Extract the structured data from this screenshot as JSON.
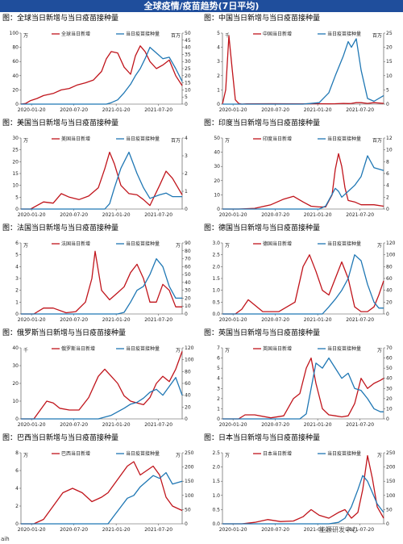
{
  "page": {
    "title": "全球疫情/疫苗趋势(7日平均)",
    "footer_left": "aih",
    "watermark": "能源研发中心"
  },
  "colors": {
    "cases": "#c0141b",
    "vaccine": "#1f77b4",
    "banner": "#1f4e9c"
  },
  "chart_data": [
    {
      "type": "line",
      "title": "图：全球当日新增与当日疫苗接种量",
      "left_unit": "万",
      "right_unit": "百万",
      "x_ticks": [
        "2020-01-20",
        "2020-07-20",
        "2021-01-20",
        "2021-07-20"
      ],
      "ylim_left": [
        0,
        100
      ],
      "left_ticks": [
        "0",
        "20",
        "40",
        "60",
        "80",
        "100"
      ],
      "ylim_right": [
        0,
        50
      ],
      "right_ticks": [
        "0",
        "5",
        "10",
        "15",
        "20",
        "25",
        "30",
        "35",
        "40",
        "45",
        "50"
      ],
      "x": [
        0,
        0.03,
        0.06,
        0.1,
        0.14,
        0.2,
        0.25,
        0.3,
        0.35,
        0.4,
        0.45,
        0.5,
        0.53,
        0.56,
        0.6,
        0.64,
        0.68,
        0.71,
        0.74,
        0.77,
        0.8,
        0.84,
        0.88,
        0.92,
        0.96,
        1
      ],
      "series": [
        {
          "name": "全球当日新增",
          "axis": "left",
          "values": [
            0,
            1,
            5,
            8,
            12,
            15,
            20,
            22,
            27,
            30,
            34,
            46,
            64,
            74,
            72,
            52,
            42,
            68,
            82,
            74,
            60,
            50,
            55,
            62,
            40,
            26
          ]
        },
        {
          "name": "当日疫苗接种量",
          "axis": "right",
          "values": [
            0,
            0,
            0,
            0,
            0,
            0,
            0,
            0,
            0,
            0,
            0,
            0,
            0,
            1,
            3,
            8,
            14,
            20,
            25,
            32,
            40,
            36,
            32,
            33,
            25,
            16
          ]
        }
      ]
    },
    {
      "type": "line",
      "title": "图：中国当日新增与当日疫苗接种量",
      "left_unit": "千",
      "right_unit": "百万",
      "x_ticks": [
        "2020-01-20",
        "2020-07-20",
        "2021-01-20",
        "2021-07-20"
      ],
      "ylim_left": [
        0,
        5
      ],
      "left_ticks": [
        "0",
        "1",
        "2",
        "3",
        "4",
        "5"
      ],
      "ylim_right": [
        0,
        25
      ],
      "right_ticks": [
        "0",
        "5",
        "10",
        "15",
        "20",
        "25"
      ],
      "x": [
        0,
        0.02,
        0.04,
        0.06,
        0.08,
        0.1,
        0.12,
        0.15,
        0.3,
        0.5,
        0.6,
        0.66,
        0.7,
        0.75,
        0.78,
        0.8,
        0.83,
        0.86,
        0.9,
        0.94,
        1
      ],
      "series": [
        {
          "name": "中国当日新增",
          "axis": "left",
          "values": [
            0,
            1,
            4.8,
            2.5,
            0.3,
            0.05,
            0,
            0.02,
            0.03,
            0.02,
            0.03,
            0.02,
            0.03,
            0.05,
            0.04,
            0.05,
            0.1,
            0.1,
            0.05,
            0.1,
            0.05
          ]
        },
        {
          "name": "当日疫苗接种量",
          "axis": "right",
          "values": [
            0,
            0,
            0,
            0,
            0,
            0,
            0,
            0,
            0,
            0,
            0.5,
            4,
            10,
            17,
            22,
            20,
            23,
            12,
            2,
            1,
            3
          ]
        }
      ]
    },
    {
      "type": "line",
      "title": "图：美国当日新增与当日疫苗接种量",
      "left_unit": "万",
      "right_unit": "百万",
      "x_ticks": [
        "2020-01-20",
        "2020-07-20",
        "2021-01-20",
        "2021-07-20"
      ],
      "ylim_left": [
        0,
        30
      ],
      "left_ticks": [
        "0",
        "5",
        "10",
        "15",
        "20",
        "25",
        "30"
      ],
      "ylim_right": [
        0,
        4
      ],
      "right_ticks": [
        "0",
        "1",
        "2",
        "3",
        "4"
      ],
      "x": [
        0,
        0.06,
        0.1,
        0.14,
        0.2,
        0.25,
        0.3,
        0.36,
        0.42,
        0.48,
        0.52,
        0.55,
        0.58,
        0.62,
        0.67,
        0.72,
        0.76,
        0.8,
        0.86,
        0.9,
        0.94,
        1
      ],
      "series": [
        {
          "name": "美国当日新增",
          "axis": "left",
          "values": [
            0,
            0,
            1.5,
            3,
            2.5,
            6.5,
            5,
            4,
            5.5,
            9,
            17,
            24,
            19,
            10,
            6.5,
            6,
            4,
            1.5,
            10,
            16,
            13,
            6
          ]
        },
        {
          "name": "当日疫苗接种量",
          "axis": "right",
          "values": [
            0,
            0,
            0,
            0,
            0,
            0,
            0,
            0,
            0,
            0,
            0,
            0.3,
            1.2,
            2.3,
            3.2,
            2,
            1.2,
            0.6,
            0.8,
            0.9,
            0.7,
            0.7
          ]
        }
      ]
    },
    {
      "type": "line",
      "title": "图：印度当日新增与当日疫苗接种量",
      "left_unit": "万",
      "right_unit": "百万",
      "x_ticks": [
        "2020-01-20",
        "2020-07-20",
        "2021-01-20",
        "2021-07-20"
      ],
      "ylim_left": [
        0,
        50
      ],
      "left_ticks": [
        "0",
        "10",
        "20",
        "30",
        "40",
        "50"
      ],
      "ylim_right": [
        0,
        12
      ],
      "right_ticks": [
        "0",
        "2",
        "4",
        "6",
        "8",
        "10",
        "12"
      ],
      "x": [
        0,
        0.1,
        0.2,
        0.3,
        0.38,
        0.44,
        0.5,
        0.55,
        0.6,
        0.64,
        0.68,
        0.7,
        0.72,
        0.74,
        0.76,
        0.78,
        0.82,
        0.86,
        0.9,
        0.94,
        1
      ],
      "series": [
        {
          "name": "印度当日新增",
          "axis": "left",
          "values": [
            0,
            0,
            0.5,
            3,
            7,
            9,
            5,
            2,
            1.5,
            1.5,
            10,
            28,
            39,
            30,
            15,
            6,
            5,
            3,
            3,
            3,
            2
          ]
        },
        {
          "name": "当日疫苗接种量",
          "axis": "right",
          "values": [
            0,
            0,
            0,
            0,
            0,
            0,
            0,
            0,
            0,
            0.5,
            2.5,
            3.5,
            3,
            2,
            2.5,
            3,
            4,
            5.5,
            9,
            7,
            6.5
          ]
        }
      ]
    },
    {
      "type": "line",
      "title": "图：法国当日新增与当日疫苗接种量",
      "left_unit": "万",
      "right_unit": "万",
      "x_ticks": [
        "2020-01-20",
        "2020-07-20",
        "2021-01-20",
        "2021-07-20"
      ],
      "ylim_left": [
        0,
        6
      ],
      "left_ticks": [
        "0",
        "1",
        "2",
        "3",
        "4",
        "5",
        "6"
      ],
      "ylim_right": [
        0,
        90
      ],
      "right_ticks": [
        "0",
        "10",
        "20",
        "30",
        "40",
        "50",
        "60",
        "70",
        "80",
        "90"
      ],
      "x": [
        0,
        0.08,
        0.14,
        0.2,
        0.28,
        0.34,
        0.4,
        0.44,
        0.46,
        0.5,
        0.55,
        0.6,
        0.64,
        0.68,
        0.72,
        0.76,
        0.8,
        0.84,
        0.88,
        0.92,
        0.96,
        1
      ],
      "series": [
        {
          "name": "法国当日新增",
          "axis": "left",
          "values": [
            0,
            0,
            0.5,
            0.5,
            0.1,
            0.2,
            1,
            3,
            5.3,
            2,
            1.2,
            1.8,
            2.3,
            3.5,
            4.2,
            3,
            1,
            1,
            2.5,
            2,
            0.6,
            0.6
          ]
        },
        {
          "name": "当日疫苗接种量",
          "axis": "right",
          "values": [
            0,
            0,
            0,
            0,
            0,
            0,
            0,
            0,
            0,
            0,
            0,
            0,
            2,
            15,
            30,
            35,
            50,
            70,
            60,
            35,
            20,
            20
          ]
        }
      ]
    },
    {
      "type": "line",
      "title": "图：德国当日新增与当日疫苗接种量",
      "left_unit": "万",
      "right_unit": "万",
      "x_ticks": [
        "2020-01-20",
        "2020-07-20",
        "2021-01-20",
        "2021-07-20"
      ],
      "ylim_left": [
        0,
        3
      ],
      "left_ticks": [
        "0.0",
        "0.5",
        "1.0",
        "1.5",
        "2.0",
        "2.5",
        "3.0"
      ],
      "ylim_right": [
        0,
        120
      ],
      "right_ticks": [
        "0",
        "20",
        "40",
        "60",
        "80",
        "100",
        "120"
      ],
      "x": [
        0,
        0.08,
        0.12,
        0.16,
        0.25,
        0.35,
        0.45,
        0.5,
        0.54,
        0.58,
        0.62,
        0.66,
        0.7,
        0.74,
        0.78,
        0.82,
        0.86,
        0.9,
        0.94,
        0.97,
        1
      ],
      "series": [
        {
          "name": "德国当日新增",
          "axis": "left",
          "values": [
            0,
            0,
            0.2,
            0.6,
            0.1,
            0.1,
            0.5,
            2,
            2.5,
            1.8,
            1,
            0.8,
            1.5,
            2.2,
            1.5,
            0.3,
            0.1,
            0.1,
            0.3,
            0.8,
            1.4
          ]
        },
        {
          "name": "当日疫苗接种量",
          "axis": "right",
          "values": [
            0,
            0,
            0,
            0,
            0,
            0,
            0,
            0,
            0,
            0,
            0,
            12,
            25,
            40,
            60,
            100,
            90,
            50,
            20,
            10,
            10
          ]
        }
      ]
    },
    {
      "type": "line",
      "title": "图：俄罗斯当日新增与当日疫苗接种量",
      "left_unit": "千",
      "right_unit": "万",
      "x_ticks": [
        "2020-01-20",
        "2020-07-20",
        "2021-01-20",
        "2021-07-20"
      ],
      "ylim_left": [
        0,
        40
      ],
      "left_ticks": [
        "0",
        "10",
        "20",
        "30",
        "40"
      ],
      "ylim_right": [
        0,
        120
      ],
      "right_ticks": [
        "0",
        "20",
        "40",
        "60",
        "80",
        "100",
        "120"
      ],
      "x": [
        0,
        0.08,
        0.12,
        0.16,
        0.2,
        0.24,
        0.3,
        0.36,
        0.42,
        0.48,
        0.52,
        0.56,
        0.6,
        0.64,
        0.68,
        0.72,
        0.76,
        0.8,
        0.84,
        0.88,
        0.92,
        0.96,
        1
      ],
      "series": [
        {
          "name": "俄罗斯当日新增",
          "axis": "left",
          "values": [
            0,
            0,
            5,
            10,
            9,
            6,
            5,
            5,
            12,
            24,
            28,
            24,
            20,
            13,
            10,
            9,
            8,
            12,
            20,
            24,
            21,
            28,
            38
          ]
        },
        {
          "name": "当日疫苗接种量",
          "axis": "right",
          "values": [
            0,
            0,
            0,
            0,
            0,
            0,
            0,
            0,
            0,
            0,
            3,
            6,
            12,
            18,
            25,
            28,
            35,
            45,
            50,
            40,
            55,
            70,
            40
          ]
        }
      ]
    },
    {
      "type": "line",
      "title": "图：英国当日新增与当日疫苗接种量",
      "left_unit": "万",
      "right_unit": "万",
      "x_ticks": [
        "2020-01-20",
        "2020-07-20",
        "2021-01-20",
        "2021-07-20"
      ],
      "ylim_left": [
        0,
        7
      ],
      "left_ticks": [
        "0",
        "1",
        "2",
        "3",
        "4",
        "5",
        "6",
        "7"
      ],
      "ylim_right": [
        0,
        70
      ],
      "right_ticks": [
        "0",
        "10",
        "20",
        "30",
        "40",
        "50",
        "60",
        "70"
      ],
      "x": [
        0,
        0.1,
        0.14,
        0.2,
        0.3,
        0.38,
        0.44,
        0.48,
        0.52,
        0.55,
        0.58,
        0.62,
        0.66,
        0.7,
        0.74,
        0.78,
        0.82,
        0.86,
        0.9,
        0.94,
        0.98,
        1
      ],
      "series": [
        {
          "name": "英国当日新增",
          "axis": "left",
          "values": [
            0,
            0,
            0.4,
            0.4,
            0.1,
            0.3,
            2,
            2.5,
            5,
            6,
            3.5,
            1,
            0.4,
            0.3,
            0.2,
            0.3,
            1.5,
            4,
            3,
            3.5,
            3.8,
            4
          ]
        },
        {
          "name": "当日疫苗接种量",
          "axis": "right",
          "values": [
            0,
            0,
            0,
            0,
            0,
            0,
            0,
            0,
            5,
            30,
            55,
            50,
            60,
            50,
            40,
            45,
            30,
            28,
            20,
            10,
            7,
            7
          ]
        }
      ]
    },
    {
      "type": "line",
      "title": "图：巴西当日新增与当日疫苗接种量",
      "left_unit": "万",
      "right_unit": "万",
      "x_ticks": [
        "2020-01-20",
        "2020-07-20",
        "2021-01-20",
        "2021-07-20"
      ],
      "ylim_left": [
        0,
        8
      ],
      "left_ticks": [
        "0",
        "2",
        "4",
        "6",
        "8"
      ],
      "ylim_right": [
        0,
        250
      ],
      "right_ticks": [
        "0",
        "50",
        "100",
        "150",
        "200",
        "250"
      ],
      "x": [
        0,
        0.08,
        0.14,
        0.2,
        0.26,
        0.32,
        0.38,
        0.44,
        0.5,
        0.54,
        0.58,
        0.62,
        0.66,
        0.7,
        0.74,
        0.78,
        0.82,
        0.86,
        0.9,
        0.94,
        1
      ],
      "series": [
        {
          "name": "巴西当日新增",
          "axis": "left",
          "values": [
            0,
            0,
            0.5,
            2,
            3.5,
            4,
            3.5,
            2.5,
            3,
            3.5,
            4.5,
            5.5,
            6.5,
            7,
            5.5,
            6,
            6.5,
            5.5,
            3,
            2,
            1.5
          ]
        },
        {
          "name": "当日疫苗接种量",
          "axis": "right",
          "values": [
            0,
            0,
            0,
            0,
            0,
            0,
            0,
            0,
            0,
            0,
            30,
            60,
            90,
            100,
            130,
            150,
            170,
            160,
            180,
            140,
            150
          ]
        }
      ]
    },
    {
      "type": "line",
      "title": "图：日本当日新增与当日疫苗接种量",
      "left_unit": "万",
      "right_unit": "万",
      "x_ticks": [
        "2020-01-20",
        "2020-07-20",
        "2021-01-20",
        "2021-07-20"
      ],
      "ylim_left": [
        0,
        2.5
      ],
      "left_ticks": [
        "0.0",
        "0.5",
        "1.0",
        "1.5",
        "2.0",
        "2.5"
      ],
      "ylim_right": [
        0,
        250
      ],
      "right_ticks": [
        "0",
        "50",
        "100",
        "150",
        "200",
        "250"
      ],
      "x": [
        0,
        0.12,
        0.2,
        0.28,
        0.36,
        0.44,
        0.5,
        0.55,
        0.6,
        0.66,
        0.72,
        0.76,
        0.8,
        0.84,
        0.87,
        0.9,
        0.93,
        0.96,
        1
      ],
      "series": [
        {
          "name": "日本当日新增",
          "axis": "left",
          "values": [
            0,
            0,
            0.05,
            0.15,
            0.08,
            0.1,
            0.25,
            0.5,
            0.3,
            0.2,
            0.4,
            0.5,
            0.2,
            0.4,
            1.2,
            2.4,
            1.6,
            0.6,
            0.2
          ]
        },
        {
          "name": "当日疫苗接种量",
          "axis": "right",
          "values": [
            0,
            0,
            0,
            0,
            0,
            0,
            0,
            0,
            0,
            0,
            5,
            20,
            60,
            120,
            170,
            150,
            110,
            70,
            40
          ]
        }
      ]
    }
  ]
}
